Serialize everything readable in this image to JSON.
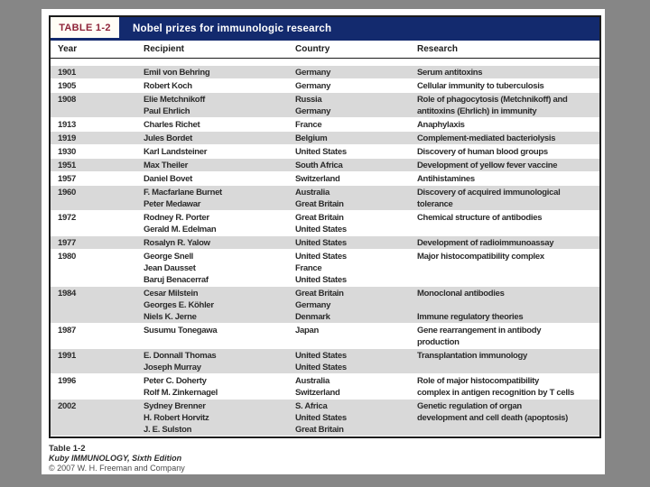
{
  "window": {
    "background_color": "#868686",
    "page_color": "#ffffff"
  },
  "table": {
    "label": "TABLE 1-2",
    "title": "Nobel prizes for immunologic research",
    "accent_navy": "#132a6e",
    "label_red": "#8e2338",
    "row_shade_color": "#d9d9d9",
    "columns": [
      "Year",
      "Recipient",
      "Country",
      "Research"
    ],
    "rows": [
      {
        "year": "1901",
        "recipients": [
          "Emil von Behring"
        ],
        "countries": [
          "Germany"
        ],
        "research": "Serum antitoxins"
      },
      {
        "year": "1905",
        "recipients": [
          "Robert Koch"
        ],
        "countries": [
          "Germany"
        ],
        "research": "Cellular immunity to tuberculosis"
      },
      {
        "year": "1908",
        "recipients": [
          "Elie Metchnikoff",
          "Paul Ehrlich"
        ],
        "countries": [
          "Russia",
          "Germany"
        ],
        "research": "Role of phagocytosis (Metchnikoff) and\nantitoxins (Ehrlich) in immunity"
      },
      {
        "year": "1913",
        "recipients": [
          "Charles Richet"
        ],
        "countries": [
          "France"
        ],
        "research": "Anaphylaxis"
      },
      {
        "year": "1919",
        "recipients": [
          "Jules Bordet"
        ],
        "countries": [
          "Belgium"
        ],
        "research": "Complement-mediated bacteriolysis"
      },
      {
        "year": "1930",
        "recipients": [
          "Karl Landsteiner"
        ],
        "countries": [
          "United States"
        ],
        "research": "Discovery of human blood groups"
      },
      {
        "year": "1951",
        "recipients": [
          "Max Theiler"
        ],
        "countries": [
          "South Africa"
        ],
        "research": "Development of yellow fever vaccine"
      },
      {
        "year": "1957",
        "recipients": [
          "Daniel Bovet"
        ],
        "countries": [
          "Switzerland"
        ],
        "research": "Antihistamines"
      },
      {
        "year": "1960",
        "recipients": [
          "F. Macfarlane Burnet",
          "Peter Medawar"
        ],
        "countries": [
          "Australia",
          "Great Britain"
        ],
        "research": "Discovery of acquired immunological\ntolerance"
      },
      {
        "year": "1972",
        "recipients": [
          "Rodney R. Porter",
          "Gerald M. Edelman"
        ],
        "countries": [
          "Great Britain",
          "United States"
        ],
        "research": "Chemical structure of antibodies"
      },
      {
        "year": "1977",
        "recipients": [
          "Rosalyn R. Yalow"
        ],
        "countries": [
          "United States"
        ],
        "research": "Development of radioimmunoassay"
      },
      {
        "year": "1980",
        "recipients": [
          "George Snell",
          "Jean Dausset",
          "Baruj Benacerraf"
        ],
        "countries": [
          "United States",
          "France",
          "United States"
        ],
        "research": "Major histocompatibility complex"
      },
      {
        "year": "1984",
        "recipients": [
          "Cesar Milstein",
          "Georges E. Köhler",
          "Niels K. Jerne"
        ],
        "countries": [
          "Great Britain",
          "Germany",
          "Denmark"
        ],
        "research": "Monoclonal antibodies\n\nImmune regulatory theories"
      },
      {
        "year": "1987",
        "recipients": [
          "Susumu Tonegawa"
        ],
        "countries": [
          "Japan"
        ],
        "research": "Gene rearrangement in antibody\nproduction"
      },
      {
        "year": "1991",
        "recipients": [
          "E. Donnall Thomas",
          "Joseph Murray"
        ],
        "countries": [
          "United States",
          "United States"
        ],
        "research": "Transplantation immunology"
      },
      {
        "year": "1996",
        "recipients": [
          "Peter C. Doherty",
          "Rolf M. Zinkernagel"
        ],
        "countries": [
          "Australia",
          "Switzerland"
        ],
        "research": "Role of major histocompatibility\ncomplex in antigen recognition by T cells"
      },
      {
        "year": "2002",
        "recipients": [
          "Sydney Brenner",
          "H. Robert Horvitz",
          "J. E. Sulston"
        ],
        "countries": [
          "S. Africa",
          "United States",
          "Great Britain"
        ],
        "research": "Genetic regulation of organ\ndevelopment and cell death (apoptosis)"
      }
    ]
  },
  "caption": {
    "table_number": "Table 1-2",
    "book_title": "Kuby IMMUNOLOGY, Sixth Edition",
    "copyright": "© 2007 W. H. Freeman and Company"
  }
}
